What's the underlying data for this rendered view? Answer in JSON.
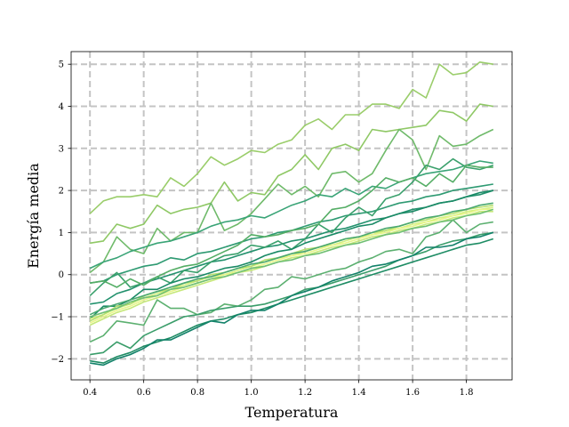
{
  "chart_data": {
    "type": "line",
    "title": "",
    "xlabel": "Temperatura",
    "ylabel": "Energía media",
    "xlim": [
      0.33,
      1.97
    ],
    "ylim": [
      -2.5,
      5.3
    ],
    "xticks": [
      0.4,
      0.6,
      0.8,
      1.0,
      1.2,
      1.4,
      1.6,
      1.8
    ],
    "xtick_labels": [
      "0.4",
      "0.6",
      "0.8",
      "1.0",
      "1.2",
      "1.4",
      "1.6",
      "1.8"
    ],
    "yticks": [
      -2,
      -1,
      0,
      1,
      2,
      3,
      4,
      5
    ],
    "ytick_labels": [
      "−2",
      "−1",
      "0",
      "1",
      "2",
      "3",
      "4",
      "5"
    ],
    "grid": true,
    "legend": "none",
    "x": [
      0.4,
      0.45,
      0.5,
      0.55,
      0.6,
      0.65,
      0.7,
      0.75,
      0.8,
      0.85,
      0.9,
      0.95,
      1.0,
      1.05,
      1.1,
      1.15,
      1.2,
      1.25,
      1.3,
      1.35,
      1.4,
      1.45,
      1.5,
      1.55,
      1.6,
      1.65,
      1.7,
      1.75,
      1.8,
      1.85,
      1.9
    ],
    "series": [
      {
        "color": "#9acd6a",
        "values": [
          1.45,
          1.75,
          1.85,
          1.85,
          1.9,
          1.85,
          2.3,
          2.1,
          2.4,
          2.8,
          2.6,
          2.75,
          2.95,
          2.9,
          3.1,
          3.2,
          3.55,
          3.7,
          3.45,
          3.8,
          3.8,
          4.05,
          4.05,
          3.95,
          4.4,
          4.2,
          5.0,
          4.75,
          4.8,
          5.05,
          5.0
        ]
      },
      {
        "color": "#8fc865",
        "values": [
          0.75,
          0.8,
          1.2,
          1.1,
          1.2,
          1.65,
          1.45,
          1.55,
          1.6,
          1.7,
          2.2,
          1.75,
          1.95,
          1.9,
          2.35,
          2.5,
          2.85,
          2.5,
          3.0,
          3.1,
          2.95,
          3.45,
          3.4,
          3.45,
          3.5,
          3.55,
          3.9,
          3.85,
          3.65,
          4.05,
          4.0
        ]
      },
      {
        "color": "#6fba6a",
        "values": [
          0.05,
          0.3,
          0.9,
          0.6,
          0.5,
          1.1,
          0.8,
          1.0,
          1.0,
          1.7,
          1.05,
          1.2,
          1.45,
          1.8,
          2.15,
          1.9,
          2.1,
          1.85,
          2.4,
          2.45,
          2.2,
          2.4,
          2.95,
          3.45,
          3.2,
          2.5,
          3.3,
          3.05,
          3.1,
          3.3,
          3.45
        ]
      },
      {
        "color": "#3aa477",
        "values": [
          0.15,
          0.3,
          0.4,
          0.55,
          0.65,
          0.75,
          0.8,
          0.9,
          1.0,
          1.15,
          1.25,
          1.3,
          1.4,
          1.35,
          1.5,
          1.65,
          1.75,
          1.9,
          1.85,
          2.05,
          1.9,
          2.1,
          2.05,
          2.2,
          2.3,
          2.4,
          2.45,
          2.5,
          2.6,
          2.7,
          2.65
        ]
      },
      {
        "color": "#2e9a72",
        "values": [
          -0.2,
          -0.15,
          0.0,
          0.1,
          0.2,
          0.25,
          0.4,
          0.35,
          0.5,
          0.55,
          0.65,
          0.75,
          0.85,
          0.9,
          1.0,
          1.05,
          1.15,
          1.25,
          1.3,
          1.4,
          1.45,
          1.5,
          1.6,
          1.7,
          1.75,
          1.85,
          1.9,
          2.0,
          2.05,
          2.1,
          2.15
        ]
      },
      {
        "color": "#22916d",
        "values": [
          -0.7,
          -0.65,
          -0.45,
          -0.35,
          -0.2,
          -0.1,
          0.0,
          0.1,
          0.2,
          0.3,
          0.35,
          0.45,
          0.55,
          0.65,
          0.7,
          0.8,
          0.85,
          0.95,
          1.05,
          1.1,
          1.2,
          1.3,
          1.35,
          1.45,
          1.55,
          1.6,
          1.7,
          1.75,
          1.85,
          1.9,
          2.0
        ]
      },
      {
        "color": "#3aa06c",
        "values": [
          -0.5,
          -0.2,
          0.05,
          -0.3,
          -0.2,
          -0.05,
          -0.2,
          0.1,
          0.05,
          0.3,
          0.45,
          0.5,
          0.7,
          0.65,
          0.8,
          0.6,
          0.85,
          1.2,
          1.0,
          1.35,
          1.6,
          1.4,
          1.8,
          1.9,
          2.2,
          2.6,
          2.5,
          2.75,
          2.55,
          2.5,
          2.6
        ]
      },
      {
        "color": "#54ad65",
        "values": [
          -0.2,
          -0.15,
          -0.3,
          -0.1,
          -0.25,
          -0.05,
          0.1,
          0.2,
          0.25,
          0.4,
          0.55,
          0.7,
          0.95,
          0.9,
          0.95,
          1.05,
          1.1,
          1.2,
          1.55,
          1.6,
          1.75,
          2.0,
          2.3,
          2.2,
          2.3,
          2.1,
          2.4,
          2.2,
          2.6,
          2.55,
          2.55
        ]
      },
      {
        "color": "#1a8a66",
        "values": [
          -1.05,
          -0.75,
          -0.75,
          -0.6,
          -0.35,
          -0.35,
          -0.2,
          -0.1,
          -0.05,
          0.05,
          0.15,
          0.2,
          0.3,
          0.45,
          0.55,
          0.6,
          0.75,
          0.85,
          0.95,
          1.05,
          1.15,
          1.2,
          1.35,
          1.45,
          1.5,
          1.6,
          1.7,
          1.75,
          1.85,
          1.95,
          2.0
        ]
      },
      {
        "color": "#d4f080",
        "values": [
          -1.05,
          -0.95,
          -0.8,
          -0.7,
          -0.55,
          -0.45,
          -0.35,
          -0.25,
          -0.15,
          -0.05,
          0.0,
          0.1,
          0.2,
          0.3,
          0.4,
          0.45,
          0.55,
          0.65,
          0.7,
          0.8,
          0.9,
          0.95,
          1.05,
          1.1,
          1.2,
          1.25,
          1.35,
          1.4,
          1.5,
          1.55,
          1.6
        ]
      },
      {
        "color": "#e8f58a",
        "values": [
          -1.15,
          -1.0,
          -0.85,
          -0.75,
          -0.6,
          -0.5,
          -0.4,
          -0.3,
          -0.2,
          -0.1,
          0.0,
          0.05,
          0.15,
          0.25,
          0.35,
          0.45,
          0.5,
          0.6,
          0.7,
          0.75,
          0.85,
          0.95,
          1.0,
          1.1,
          1.15,
          1.25,
          1.3,
          1.4,
          1.45,
          1.55,
          1.55
        ]
      },
      {
        "color": "#c6e87a",
        "values": [
          -1.2,
          -1.05,
          -0.9,
          -0.8,
          -0.65,
          -0.55,
          -0.45,
          -0.35,
          -0.25,
          -0.15,
          -0.05,
          0.05,
          0.1,
          0.2,
          0.3,
          0.4,
          0.45,
          0.55,
          0.65,
          0.7,
          0.8,
          0.9,
          0.95,
          1.05,
          1.1,
          1.2,
          1.25,
          1.35,
          1.4,
          1.5,
          1.5
        ]
      },
      {
        "color": "#b6e06f",
        "values": [
          -1.1,
          -0.95,
          -0.75,
          -0.7,
          -0.5,
          -0.4,
          -0.35,
          -0.2,
          -0.15,
          0.0,
          0.05,
          0.15,
          0.2,
          0.35,
          0.4,
          0.5,
          0.6,
          0.65,
          0.75,
          0.85,
          0.9,
          1.0,
          1.05,
          1.15,
          1.25,
          1.3,
          1.4,
          1.45,
          1.55,
          1.6,
          1.65
        ]
      },
      {
        "color": "#4aa870",
        "values": [
          -0.95,
          -0.8,
          -0.7,
          -0.6,
          -0.5,
          -0.4,
          -0.3,
          -0.2,
          -0.1,
          -0.05,
          0.05,
          0.15,
          0.25,
          0.3,
          0.4,
          0.5,
          0.55,
          0.65,
          0.75,
          0.85,
          0.9,
          1.0,
          1.1,
          1.15,
          1.25,
          1.35,
          1.4,
          1.5,
          1.55,
          1.65,
          1.7
        ]
      },
      {
        "color": "#5cb070",
        "values": [
          -1.6,
          -1.45,
          -1.1,
          -1.15,
          -1.2,
          -0.6,
          -0.8,
          -0.8,
          -0.95,
          -0.9,
          -0.7,
          -0.75,
          -0.6,
          -0.35,
          -0.3,
          -0.05,
          -0.1,
          0.0,
          0.1,
          0.15,
          0.3,
          0.4,
          0.55,
          0.6,
          0.5,
          0.9,
          1.0,
          1.3,
          1.0,
          1.2,
          1.25
        ]
      },
      {
        "color": "#3a9d6a",
        "values": [
          -1.9,
          -1.85,
          -1.6,
          -1.75,
          -1.45,
          -1.3,
          -1.15,
          -1.0,
          -0.95,
          -0.85,
          -0.8,
          -0.75,
          -0.75,
          -0.7,
          -0.6,
          -0.5,
          -0.35,
          -0.3,
          -0.2,
          -0.1,
          0.0,
          0.1,
          0.2,
          0.35,
          0.45,
          0.55,
          0.7,
          0.8,
          0.85,
          0.95,
          1.0
        ]
      },
      {
        "color": "#1e8c64",
        "values": [
          -2.05,
          -2.1,
          -1.95,
          -1.85,
          -1.7,
          -1.6,
          -1.5,
          -1.35,
          -1.2,
          -1.1,
          -1.05,
          -0.95,
          -0.9,
          -0.8,
          -0.7,
          -0.6,
          -0.5,
          -0.4,
          -0.3,
          -0.2,
          -0.1,
          0.0,
          0.1,
          0.2,
          0.3,
          0.4,
          0.5,
          0.6,
          0.7,
          0.75,
          0.85
        ]
      },
      {
        "color": "#13826a",
        "values": [
          -2.1,
          -2.15,
          -2.0,
          -1.9,
          -1.75,
          -1.55,
          -1.55,
          -1.4,
          -1.25,
          -1.1,
          -1.15,
          -0.95,
          -0.85,
          -0.85,
          -0.7,
          -0.5,
          -0.4,
          -0.3,
          -0.15,
          -0.05,
          0.05,
          0.2,
          0.25,
          0.35,
          0.45,
          0.65,
          0.65,
          0.7,
          0.85,
          0.9,
          1.0
        ]
      },
      {
        "color": "#6fbf74",
        "values": [
          -1.0,
          -0.9,
          -0.8,
          -0.65,
          -0.55,
          -0.5,
          -0.35,
          -0.3,
          -0.2,
          -0.1,
          -0.05,
          0.05,
          0.15,
          0.2,
          0.3,
          0.35,
          0.45,
          0.5,
          0.6,
          0.7,
          0.75,
          0.85,
          0.95,
          1.0,
          1.1,
          1.15,
          1.25,
          1.3,
          1.4,
          1.45,
          1.55
        ]
      }
    ]
  }
}
